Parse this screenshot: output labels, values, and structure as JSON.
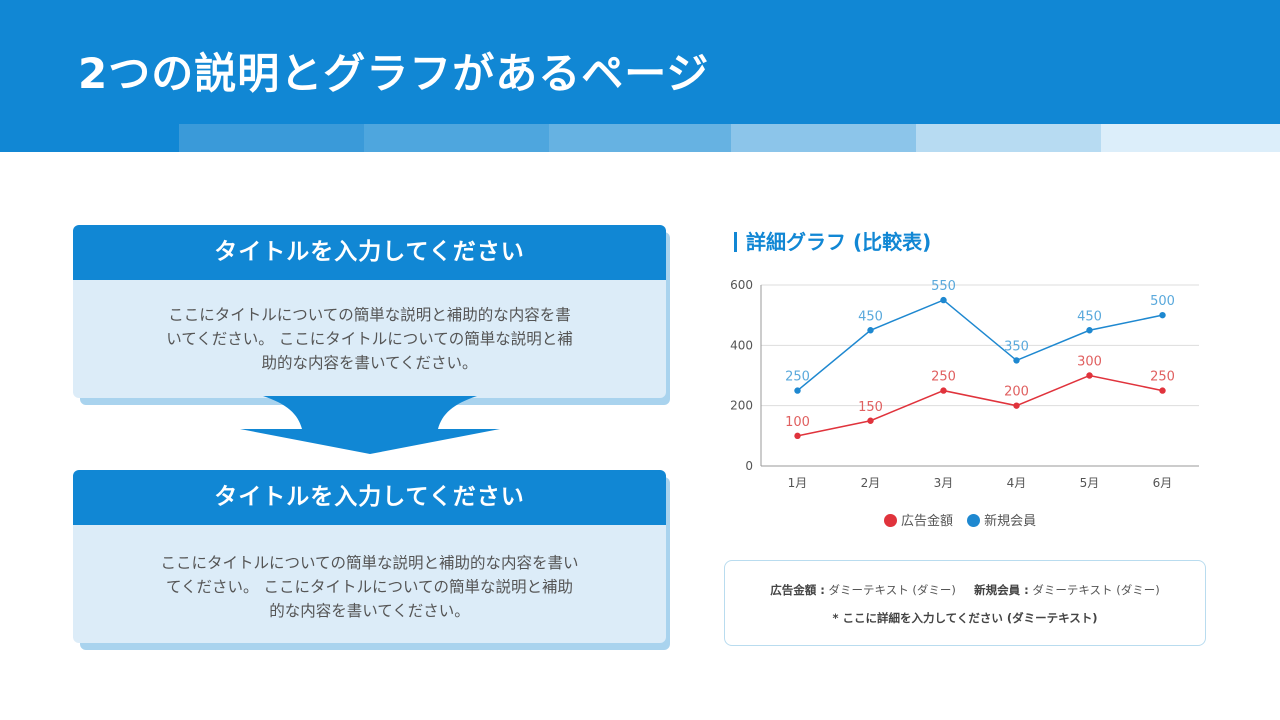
{
  "header": {
    "title": "2つの説明とグラフがあるページ",
    "stripe_colors": [
      "#1187d4",
      "#3a9ad9",
      "#4ea6de",
      "#66b2e2",
      "#8cc5ea",
      "#b7dbf2",
      "#dceefa"
    ]
  },
  "cards": [
    {
      "title": "タイトルを入力してください",
      "body_lines": [
        "ここにタイトルについての簡単な説明と補助的な内容を書",
        "いてください。 ここにタイトルについての簡単な説明と補",
        "助的な内容を書いてください。"
      ]
    },
    {
      "title": "タイトルを入力してください",
      "body_lines": [
        "ここにタイトルについての簡単な説明と補助的な内容を書い",
        "てください。 ここにタイトルについての簡単な説明と補助",
        "的な内容を書いてください。"
      ]
    }
  ],
  "colors": {
    "primary": "#1187d4",
    "card_body": "#dcecf8",
    "card_shadow": "#a9d3ee",
    "series_red": "#e0333c",
    "series_blue": "#1e88d0"
  },
  "chart_title": "詳細グラフ (比較表)",
  "chart_data": {
    "type": "line",
    "title": "詳細グラフ (比較表)",
    "categories": [
      "1月",
      "2月",
      "3月",
      "4月",
      "5月",
      "6月"
    ],
    "series": [
      {
        "name": "広告金額",
        "color": "#e0333c",
        "label_color": "#e06060",
        "values": [
          100,
          150,
          250,
          200,
          300,
          250
        ]
      },
      {
        "name": "新規会員",
        "color": "#1e88d0",
        "label_color": "#5aa9dc",
        "values": [
          250,
          450,
          550,
          350,
          450,
          500
        ]
      }
    ],
    "yticks": [
      0,
      200,
      400,
      600
    ],
    "ylim": [
      0,
      600
    ],
    "xlabel": "",
    "ylabel": "",
    "grid": true,
    "legend_position": "bottom"
  },
  "note": {
    "label1": "広告金額 :",
    "text1": " ダミーテキスト (ダミー)",
    "label2": "新規会員 :",
    "text2": " ダミーテキスト (ダミー)",
    "detail": "* ここに詳細を入力してください (ダミーテキスト)"
  }
}
